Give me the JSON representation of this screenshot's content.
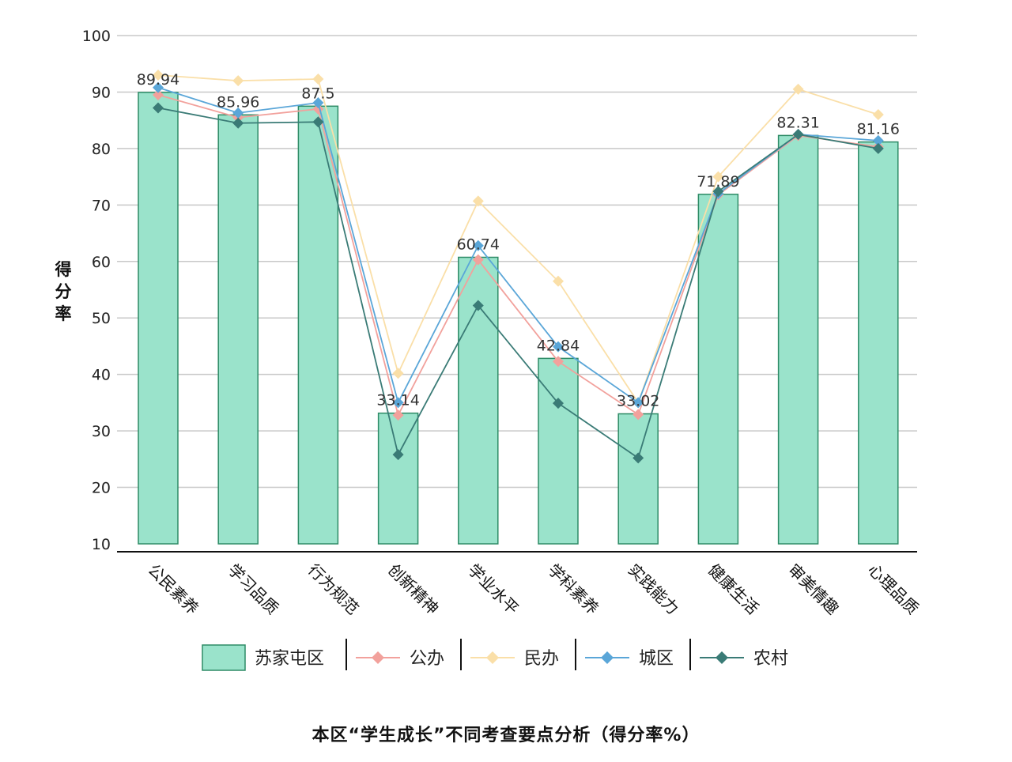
{
  "caption": "本区“学生成长”不同考查要点分析（得分率%）",
  "chart_data": {
    "type": "bar",
    "ylabel": "得分率",
    "xlabel": "",
    "ylim": [
      10,
      100
    ],
    "yticks": [
      "10",
      "20",
      "30",
      "40",
      "50",
      "60",
      "70",
      "80",
      "90",
      "100"
    ],
    "categories": [
      "公民素养",
      "学习品质",
      "行为规范",
      "创新精神",
      "学业水平",
      "学科素养",
      "实践能力",
      "健康生活",
      "审美情趣",
      "心理品质"
    ],
    "grid": true,
    "legend_position": "bottom",
    "series": [
      {
        "name": "苏家屯区",
        "type": "bar",
        "color": "#9ae3cb",
        "stroke": "#2e8b66",
        "values": [
          89.94,
          85.96,
          87.5,
          33.14,
          60.74,
          42.84,
          33.02,
          71.89,
          82.31,
          81.16
        ],
        "labels": [
          "89.94",
          "85.96",
          "87.5",
          "33.14",
          "60.74",
          "42.84",
          "33.02",
          "71.89",
          "82.31",
          "81.16"
        ]
      },
      {
        "name": "公办",
        "type": "line",
        "color": "#f2a19c",
        "values": [
          89.5,
          85.5,
          87.0,
          32.8,
          60.3,
          42.3,
          32.9,
          71.8,
          82.3,
          80.3
        ]
      },
      {
        "name": "民办",
        "type": "line",
        "color": "#fadfa8",
        "values": [
          93.0,
          92.0,
          92.3,
          40.2,
          70.7,
          56.5,
          35.0,
          75.0,
          90.5,
          86.0
        ]
      },
      {
        "name": "城区",
        "type": "line",
        "color": "#5aa6d8",
        "values": [
          90.8,
          86.3,
          88.1,
          35.0,
          62.8,
          44.9,
          35.0,
          72.0,
          82.5,
          81.4
        ]
      },
      {
        "name": "农村",
        "type": "line",
        "color": "#3a7b76",
        "values": [
          87.2,
          84.5,
          84.7,
          25.8,
          52.2,
          34.9,
          25.2,
          72.4,
          82.5,
          80.0
        ]
      }
    ]
  }
}
